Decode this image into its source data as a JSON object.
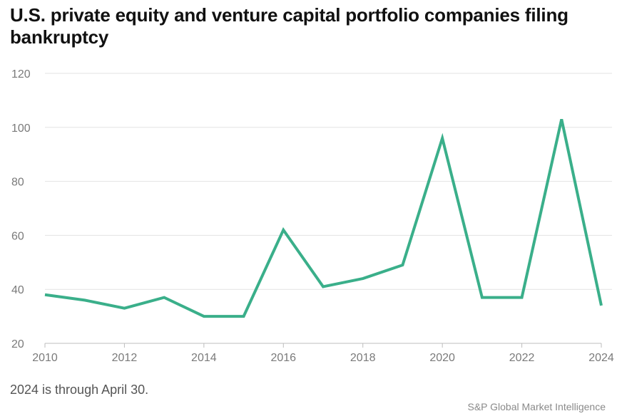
{
  "chart": {
    "title": "U.S. private equity and venture capital portfolio companies filing bankruptcy",
    "note": "2024 is through April 30.",
    "source": "S&P Global Market Intelligence"
  },
  "colors": {
    "line": "#3aaf8a",
    "grid": "#e3e3e3",
    "axis": "#bdbdbd",
    "tick_text": "#7a7a7a"
  },
  "chart_data": {
    "type": "line",
    "title": "U.S. private equity and venture capital portfolio companies filing bankruptcy",
    "xlabel": "",
    "ylabel": "",
    "x": [
      2010,
      2011,
      2012,
      2013,
      2014,
      2015,
      2016,
      2017,
      2018,
      2019,
      2020,
      2021,
      2022,
      2023,
      2024
    ],
    "series": [
      {
        "values": [
          38,
          36,
          33,
          37,
          30,
          30,
          62,
          41,
          44,
          49,
          96,
          37,
          37,
          103,
          34
        ]
      }
    ],
    "xlim": [
      2010,
      2024
    ],
    "ylim": [
      20,
      120
    ],
    "x_ticks": [
      "2010",
      "2012",
      "2014",
      "2016",
      "2018",
      "2020",
      "2022",
      "2024"
    ],
    "y_ticks": [
      "20",
      "40",
      "60",
      "80",
      "100",
      "120"
    ],
    "grid": "horizontal",
    "legend": "none"
  }
}
